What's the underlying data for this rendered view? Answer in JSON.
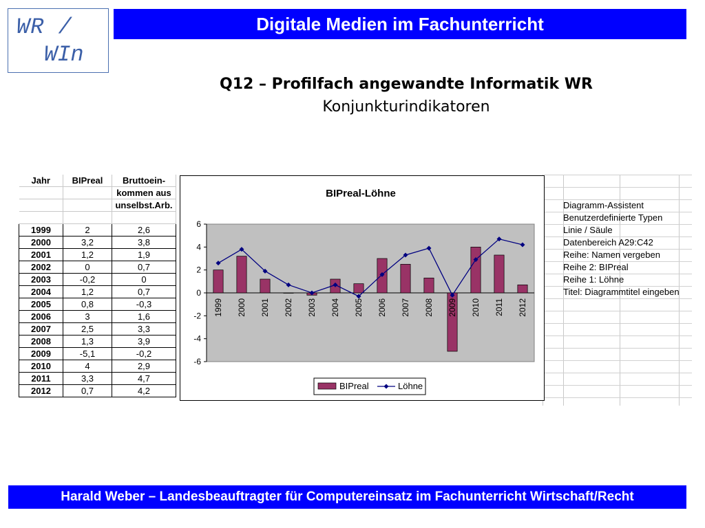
{
  "logo": {
    "line1": "WR /",
    "line2": "WIn"
  },
  "header": {
    "title": "Digitale Medien im Fachunterricht"
  },
  "slide": {
    "title": "Q12 – Profilfach angewandte Informatik WR",
    "subtitle": "Konjunkturindikatoren"
  },
  "footer": {
    "text": "Harald Weber – Landesbeauftragter für Computereinsatz im Fachunterricht Wirtschaft/Recht"
  },
  "table": {
    "headers": [
      "Jahr",
      "BIPreal",
      "Bruttoein-",
      "kommen aus",
      "unselbst.Arb."
    ],
    "rows": [
      [
        "1999",
        "2",
        "2,6"
      ],
      [
        "2000",
        "3,2",
        "3,8"
      ],
      [
        "2001",
        "1,2",
        "1,9"
      ],
      [
        "2002",
        "0",
        "0,7"
      ],
      [
        "2003",
        "-0,2",
        "0"
      ],
      [
        "2004",
        "1,2",
        "0,7"
      ],
      [
        "2005",
        "0,8",
        "-0,3"
      ],
      [
        "2006",
        "3",
        "1,6"
      ],
      [
        "2007",
        "2,5",
        "3,3"
      ],
      [
        "2008",
        "1,3",
        "3,9"
      ],
      [
        "2009",
        "-5,1",
        "-0,2"
      ],
      [
        "2010",
        "4",
        "2,9"
      ],
      [
        "2011",
        "3,3",
        "4,7"
      ],
      [
        "2012",
        "0,7",
        "4,2"
      ]
    ]
  },
  "side_notes": [
    "Diagramm-Assistent",
    "Benutzerdefinierte Typen",
    "Linie / Säule",
    "Datenbereich A29:C42",
    "Reihe: Namen vergeben",
    "Reihe 2: BIPreal",
    "Reihe 1: Löhne",
    "Titel: Diagrammtitel eingeben"
  ],
  "colors": {
    "blue": "#0000ff",
    "bar": "#993366",
    "line": "#000080",
    "plot_bg": "#c0c0c0"
  },
  "chart_data": {
    "type": "bar",
    "title": "BIPreal-Löhne",
    "categories": [
      "1999",
      "2000",
      "2001",
      "2002",
      "2003",
      "2004",
      "2005",
      "2006",
      "2007",
      "2008",
      "2009",
      "2010",
      "2011",
      "2012"
    ],
    "series": [
      {
        "name": "BIPreal",
        "kind": "bar",
        "values": [
          2,
          3.2,
          1.2,
          0,
          -0.2,
          1.2,
          0.8,
          3,
          2.5,
          1.3,
          -5.1,
          4,
          3.3,
          0.7
        ]
      },
      {
        "name": "Löhne",
        "kind": "line",
        "values": [
          2.6,
          3.8,
          1.9,
          0.7,
          0,
          0.7,
          -0.3,
          1.6,
          3.3,
          3.9,
          -0.2,
          2.9,
          4.7,
          4.2
        ]
      }
    ],
    "ylim": [
      -6,
      6
    ],
    "yticks": [
      "-6",
      "-4",
      "-2",
      "0",
      "2",
      "4",
      "6"
    ],
    "legend": "bottom",
    "grid": false
  }
}
